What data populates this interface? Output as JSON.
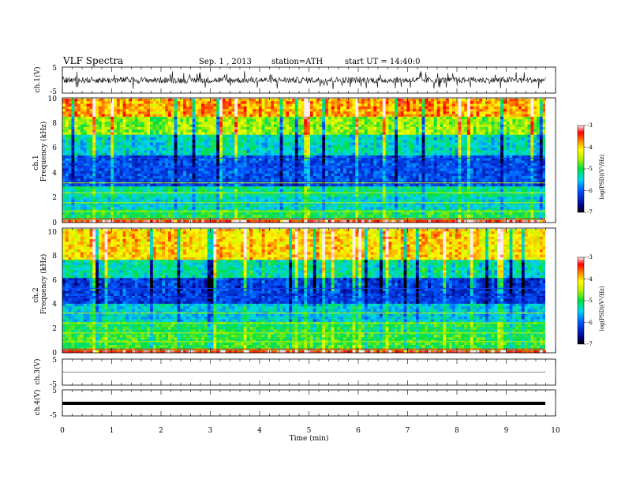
{
  "header": {
    "title": "VLF Spectra",
    "date": "Sep. 1 , 2013",
    "station": "station=ATH",
    "start": "start UT = 14:40:0"
  },
  "chart_data": [
    {
      "type": "line",
      "panel": "ch1-waveform",
      "ylabel": "ch.1(V)",
      "ylim": [
        -5,
        5
      ],
      "yticks": [
        "5",
        "-5"
      ],
      "xlim": [
        0,
        10
      ],
      "description_values": {
        "baseline_v": 0,
        "typical_amplitude_v": 1.2,
        "spikes": "frequent to about ±3 V"
      }
    },
    {
      "type": "heatmap",
      "panel": "ch1-spectrogram",
      "ylabel": "ch.1",
      "ylabel2": "Frequency (kHz)",
      "ylim": [
        0,
        10
      ],
      "yticks": [
        "0",
        "2",
        "4",
        "6",
        "8",
        "10"
      ],
      "xlim": [
        0,
        9.8
      ],
      "colorbar": {
        "label": "log(PSD)(V²/Hz)",
        "range": [
          -7,
          -3
        ],
        "ticks": [
          "-3",
          "-4",
          "-5",
          "-6",
          "-7"
        ]
      },
      "bands": [
        {
          "f_khz": [
            0,
            0.3
          ],
          "log_psd": -3.3
        },
        {
          "f_khz": [
            0.3,
            1
          ],
          "log_psd": -5.0
        },
        {
          "f_khz": [
            1,
            2
          ],
          "log_psd": -5.4
        },
        {
          "f_khz": [
            2,
            3
          ],
          "log_psd": -5.2
        },
        {
          "f_khz": [
            3,
            5.5
          ],
          "log_psd": -6.1
        },
        {
          "f_khz": [
            5.5,
            7
          ],
          "log_psd": -5.4
        },
        {
          "f_khz": [
            7,
            8.5
          ],
          "log_psd": -4.6
        },
        {
          "f_khz": [
            8.5,
            10
          ],
          "log_psd": -3.8
        }
      ]
    },
    {
      "type": "heatmap",
      "panel": "ch2-spectrogram",
      "ylabel": "ch.2",
      "ylabel2": "Frequency (kHz)",
      "ylim": [
        0,
        10
      ],
      "yticks": [
        "0",
        "2",
        "4",
        "6",
        "8",
        "10"
      ],
      "xlim": [
        0,
        9.8
      ],
      "colorbar": {
        "label": "log(PSD)(V²/Hz)",
        "range": [
          -7,
          -3
        ],
        "ticks": [
          "-3",
          "-4",
          "-5",
          "-6",
          "-7"
        ]
      },
      "bands": [
        {
          "f_khz": [
            0,
            0.3
          ],
          "log_psd": -3.3
        },
        {
          "f_khz": [
            0.3,
            1.5
          ],
          "log_psd": -4.9
        },
        {
          "f_khz": [
            1.5,
            2.5
          ],
          "log_psd": -5.0
        },
        {
          "f_khz": [
            2.5,
            4
          ],
          "log_psd": -5.5
        },
        {
          "f_khz": [
            4,
            6
          ],
          "log_psd": -6.2
        },
        {
          "f_khz": [
            6,
            7.5
          ],
          "log_psd": -5.3
        },
        {
          "f_khz": [
            7.5,
            10
          ],
          "log_psd": -4.0
        }
      ]
    },
    {
      "type": "line",
      "panel": "ch3-waveform",
      "ylabel": "ch.3(V)",
      "ylim": [
        -5,
        5
      ],
      "yticks": [
        "5",
        "-5"
      ],
      "xlim": [
        0,
        10
      ],
      "description_values": {
        "baseline_v": 0,
        "typical_amplitude_v": 0.1
      }
    },
    {
      "type": "line",
      "panel": "ch4-waveform",
      "ylabel": "ch.4(V)",
      "ylim": [
        -5,
        5
      ],
      "yticks": [
        "5",
        "-5"
      ],
      "xlim": [
        0,
        10
      ],
      "description_values": {
        "baseline_v": 0,
        "typical_amplitude_v": 0.2
      }
    }
  ],
  "x_axis": {
    "label": "Time (min)",
    "range": [
      0,
      10
    ],
    "ticks": [
      "0",
      "1",
      "2",
      "3",
      "4",
      "5",
      "6",
      "7",
      "8",
      "9",
      "10"
    ]
  }
}
